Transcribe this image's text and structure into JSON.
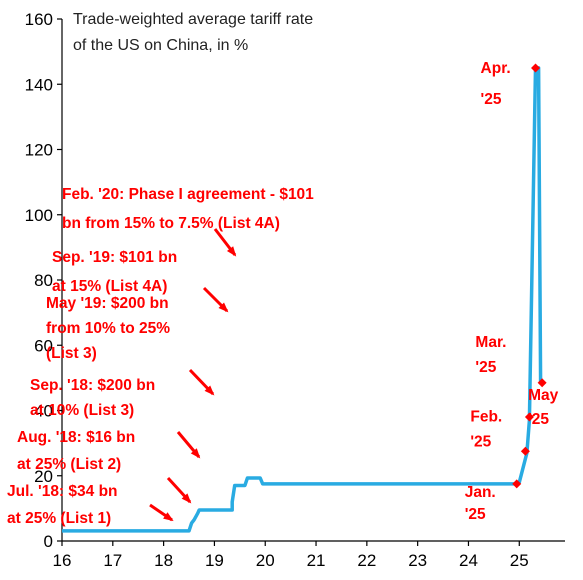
{
  "chart_data": {
    "type": "line",
    "title": "Trade-weighted average tariff rate",
    "subtitle": "of the US on China, in %",
    "xlabel": "",
    "ylabel": "",
    "xlim": [
      16,
      25.9
    ],
    "ylim": [
      0,
      160
    ],
    "x_ticks": [
      16,
      17,
      18,
      19,
      20,
      21,
      22,
      23,
      24,
      25
    ],
    "x_tick_labels": [
      "16",
      "17",
      "18",
      "19",
      "20",
      "21",
      "22",
      "23",
      "24",
      "25"
    ],
    "y_ticks": [
      0,
      20,
      40,
      60,
      80,
      100,
      120,
      140,
      160
    ],
    "y_tick_labels": [
      "0",
      "20",
      "40",
      "60",
      "80",
      "100",
      "120",
      "140",
      "160"
    ],
    "grid": false,
    "legend": false,
    "line_color": "#29abe2",
    "marker_color": "#ff0000",
    "annotation_color": "#ff0000",
    "series": [
      {
        "values": [
          [
            16.0,
            3.1
          ],
          [
            18.5,
            3.1
          ],
          [
            18.55,
            5.5
          ],
          [
            18.6,
            6.5
          ],
          [
            18.67,
            8.5
          ],
          [
            18.7,
            9.5
          ],
          [
            19.35,
            9.5
          ],
          [
            19.35,
            12
          ],
          [
            19.4,
            17
          ],
          [
            19.6,
            17
          ],
          [
            19.65,
            19.3
          ],
          [
            19.9,
            19.3
          ],
          [
            19.95,
            17.5
          ],
          [
            24.95,
            17.5
          ],
          [
            25.0,
            18
          ],
          [
            25.15,
            27
          ],
          [
            25.2,
            37
          ],
          [
            25.32,
            145
          ],
          [
            25.38,
            145
          ],
          [
            25.42,
            48.5
          ]
        ]
      }
    ],
    "markers": [
      {
        "label": "Jan.\n'25",
        "x": 24.95,
        "y": 17.5
      },
      {
        "label": "Feb.\n'25",
        "x": 25.12,
        "y": 27.5
      },
      {
        "label": "Mar.\n'25",
        "x": 25.2,
        "y": 38
      },
      {
        "label": "Apr.\n'25",
        "x": 25.32,
        "y": 145
      },
      {
        "label": "May\n'25",
        "x": 25.45,
        "y": 48.5
      }
    ],
    "annotations": [
      {
        "lines": [
          "Feb. '20: Phase I agreement - $101",
          "bn from 15% to 7.5% (List 4A)"
        ]
      },
      {
        "lines": [
          "Sep. '19: $101 bn",
          "at 15% (List 4A)"
        ]
      },
      {
        "lines": [
          "May '19: $200 bn",
          "from 10% to 25%",
          "(List 3)"
        ]
      },
      {
        "lines": [
          "Sep. '18: $200 bn",
          "at 10% (List 3)"
        ]
      },
      {
        "lines": [
          "Aug. '18: $16 bn",
          "at 25% (List 2)"
        ]
      },
      {
        "lines": [
          "Jul. '18: $34 bn",
          "at 25% (List 1)"
        ]
      }
    ]
  }
}
